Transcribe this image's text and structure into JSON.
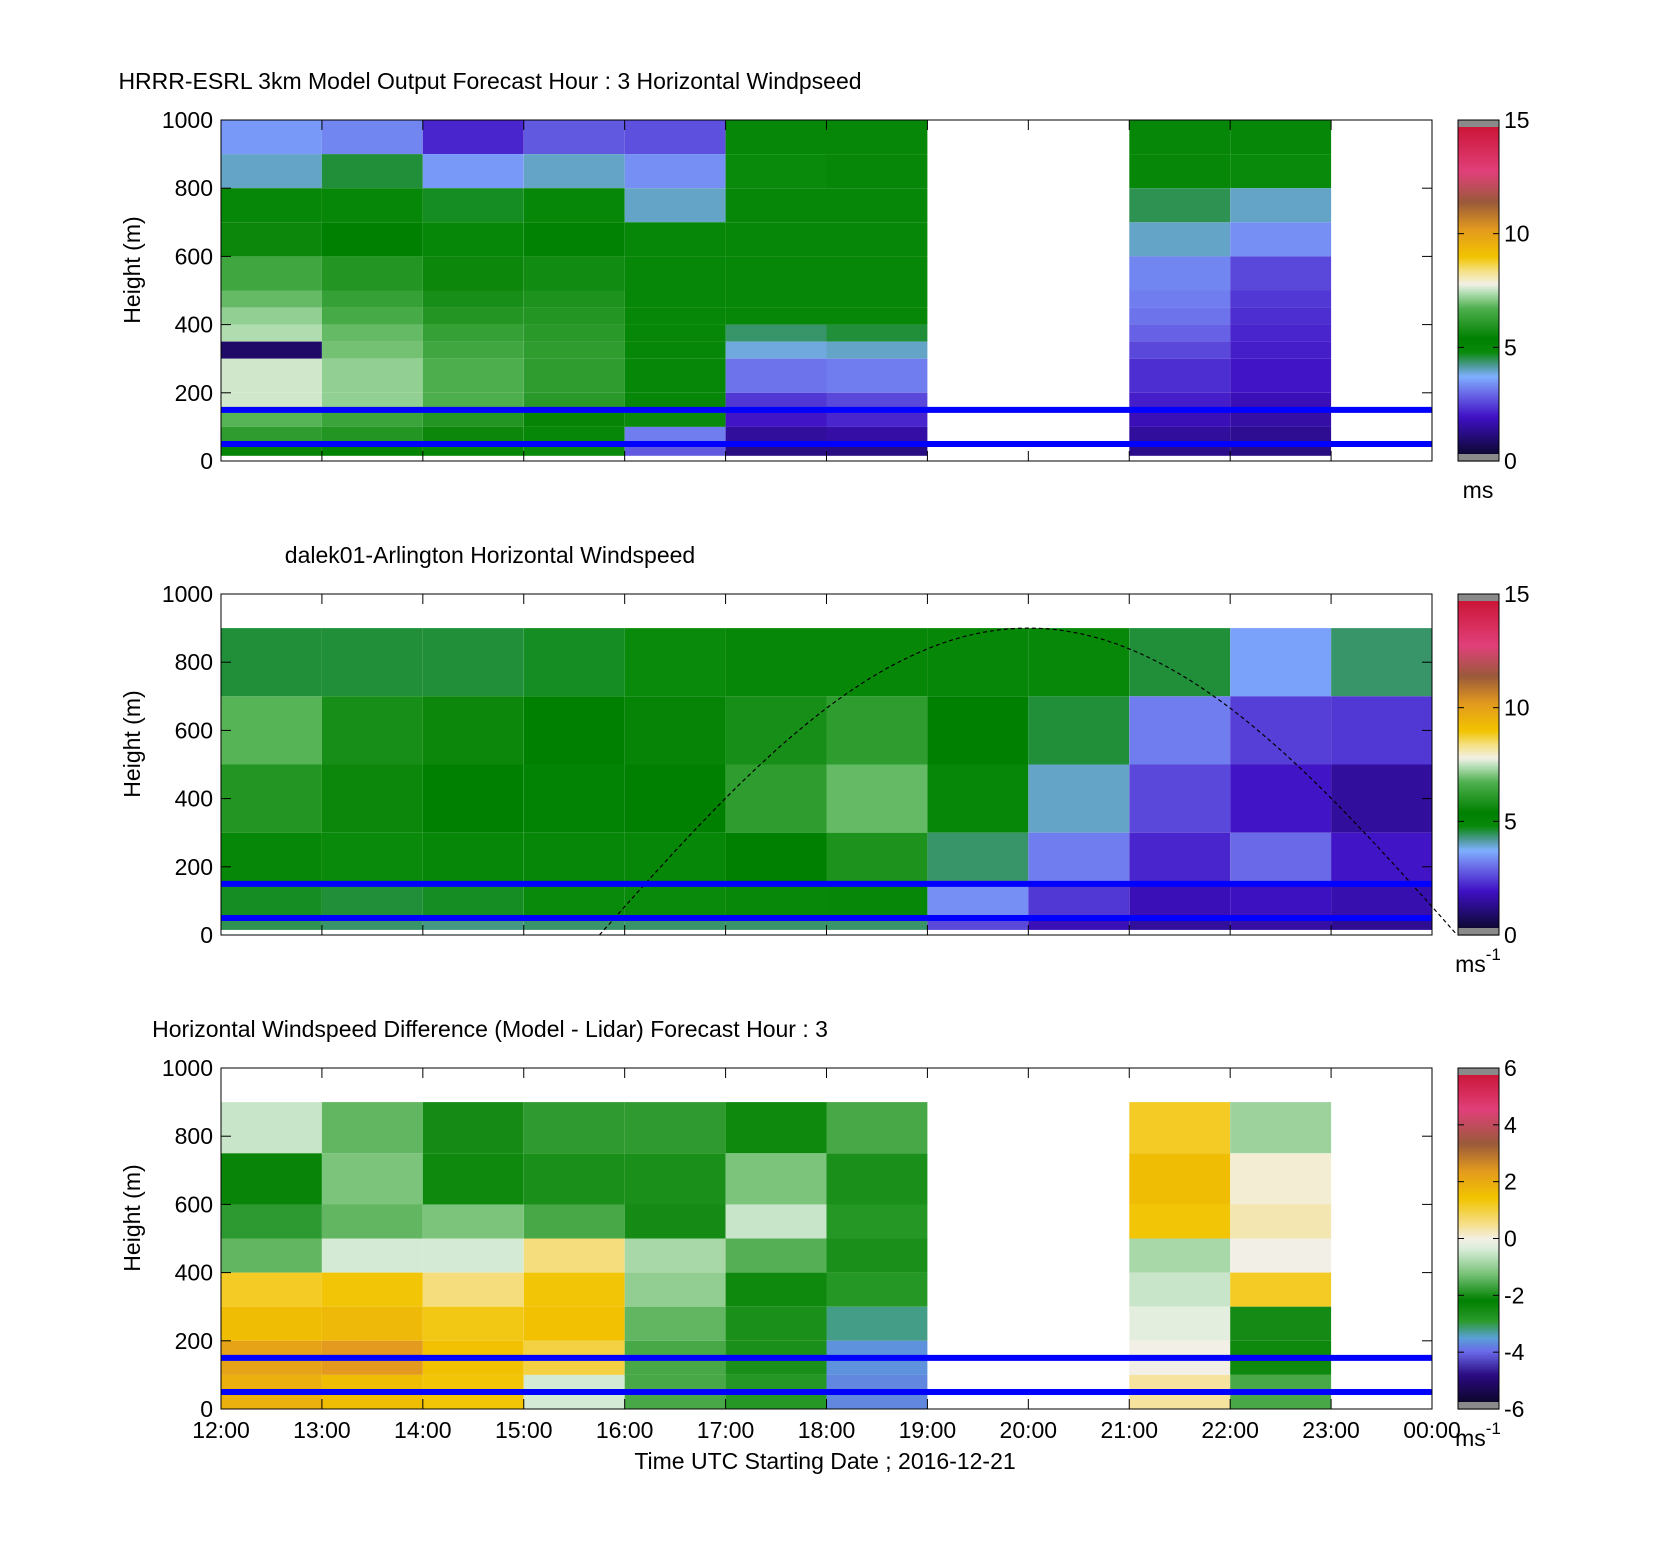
{
  "figure": {
    "xlabel": "Time UTC  Starting Date ; 2016-12-21",
    "x_ticks": [
      "12:00",
      "13:00",
      "14:00",
      "15:00",
      "16:00",
      "17:00",
      "18:00",
      "19:00",
      "20:00",
      "21:00",
      "22:00",
      "23:00",
      "00:00"
    ],
    "y_ticks": [
      "0",
      "200",
      "400",
      "600",
      "800",
      "1000"
    ],
    "reference_lines_color": "#0000ff"
  },
  "chart_data": [
    {
      "type": "heatmap",
      "title": "HRRR-ESRL 3km Model Output   Forecast Hour : 3 Horizontal Windpseed",
      "ylabel": "Height (m)",
      "xlim": [
        "12:00",
        "00:00"
      ],
      "ylim": [
        0,
        1000
      ],
      "colorbar": {
        "ticks": [
          "0",
          "5",
          "10",
          "15"
        ],
        "range": [
          0,
          15
        ],
        "unit": "ms",
        "unit_exp": ""
      },
      "reference_lines_m": [
        150,
        50
      ],
      "profiles": [
        {
          "time": "12:00",
          "bins_m": [
            1000,
            900,
            800,
            700,
            600,
            500,
            450,
            400,
            350,
            300,
            200,
            150,
            100,
            50
          ],
          "speeds": [
            3.5,
            4.0,
            5.0,
            5.6,
            6.5,
            6.9,
            7.2,
            7.4,
            0.9,
            7.6,
            7.6,
            6.8,
            6.2,
            5.5
          ]
        },
        {
          "time": "13:00",
          "bins_m": [
            1000,
            900,
            800,
            700,
            600,
            500,
            450,
            400,
            350,
            300,
            200,
            150,
            100,
            50
          ],
          "speeds": [
            3.3,
            4.6,
            5.0,
            5.4,
            6.0,
            6.3,
            6.6,
            6.9,
            7.0,
            7.2,
            7.2,
            6.4,
            6.0,
            5.2
          ]
        },
        {
          "time": "14:00",
          "bins_m": [
            1000,
            900,
            800,
            700,
            600,
            500,
            450,
            400,
            350,
            300,
            200,
            150,
            100,
            50
          ],
          "speeds": [
            2.2,
            3.5,
            4.7,
            5.0,
            5.6,
            5.8,
            6.0,
            6.3,
            6.5,
            6.7,
            6.7,
            6.0,
            5.6,
            5.0
          ]
        },
        {
          "time": "15:00",
          "bins_m": [
            1000,
            900,
            800,
            700,
            600,
            500,
            450,
            400,
            350,
            300,
            200,
            150,
            100,
            50
          ],
          "speeds": [
            2.8,
            4.0,
            5.0,
            5.3,
            5.7,
            5.9,
            6.0,
            6.1,
            6.2,
            6.2,
            6.1,
            5.5,
            5.0,
            4.8
          ]
        },
        {
          "time": "16:00",
          "bins_m": [
            1000,
            900,
            800,
            700,
            600,
            500,
            450,
            400,
            350,
            300,
            200,
            150,
            100,
            50
          ],
          "speeds": [
            2.7,
            3.4,
            4.0,
            5.0,
            5.0,
            5.0,
            5.0,
            5.0,
            5.0,
            5.0,
            5.0,
            4.8,
            3.2,
            2.8
          ]
        },
        {
          "time": "17:00",
          "bins_m": [
            1000,
            900,
            800,
            700,
            600,
            500,
            450,
            400,
            350,
            300,
            200,
            150,
            100,
            50
          ],
          "speeds": [
            5.0,
            4.8,
            5.0,
            5.0,
            5.0,
            5.0,
            5.0,
            4.4,
            3.9,
            3.1,
            2.4,
            2.0,
            1.5,
            1.2
          ]
        },
        {
          "time": "18:00",
          "bins_m": [
            1000,
            900,
            800,
            700,
            600,
            500,
            450,
            400,
            350,
            300,
            200,
            150,
            100,
            50
          ],
          "speeds": [
            5.0,
            5.0,
            5.0,
            5.0,
            5.0,
            5.0,
            5.0,
            4.6,
            4.0,
            3.2,
            2.6,
            2.2,
            1.6,
            1.2
          ]
        },
        {
          "time": "21:00",
          "bins_m": [
            1000,
            900,
            800,
            700,
            600,
            500,
            450,
            400,
            350,
            300,
            200,
            150,
            100,
            50
          ],
          "speeds": [
            5.0,
            5.0,
            4.5,
            4.0,
            3.3,
            3.2,
            3.1,
            2.9,
            2.6,
            2.3,
            2.1,
            1.8,
            1.5,
            1.3
          ]
        },
        {
          "time": "22:00",
          "bins_m": [
            1000,
            900,
            800,
            700,
            600,
            500,
            450,
            400,
            350,
            300,
            200,
            150,
            100,
            50
          ],
          "speeds": [
            5.0,
            4.8,
            4.0,
            3.4,
            2.6,
            2.4,
            2.3,
            2.2,
            2.1,
            2.0,
            1.8,
            1.6,
            1.4,
            1.2
          ]
        }
      ]
    },
    {
      "type": "heatmap",
      "title": "dalek01-Arlington  Horizontal Windspeed",
      "ylabel": "Height (m)",
      "xlim": [
        "12:00",
        "00:00"
      ],
      "ylim": [
        0,
        1000
      ],
      "colorbar": {
        "ticks": [
          "0",
          "5",
          "10",
          "15"
        ],
        "range": [
          0,
          15
        ],
        "unit": "ms",
        "unit_exp": "-1"
      },
      "reference_lines_m": [
        150,
        50
      ],
      "max_height_curve": {
        "style": "dashed",
        "peak_time": "20:00",
        "peak_height_m": 900,
        "zero_time": "15:45"
      },
      "profiles": [
        {
          "time": "12:00",
          "bins_m": [
            900,
            700,
            500,
            300,
            150,
            50
          ],
          "speeds": [
            4.6,
            6.8,
            6.0,
            5.0,
            4.7,
            4.5
          ]
        },
        {
          "time": "13:00",
          "bins_m": [
            900,
            700,
            500,
            300,
            150,
            50
          ],
          "speeds": [
            4.6,
            5.8,
            5.6,
            4.8,
            4.6,
            4.4
          ]
        },
        {
          "time": "14:00",
          "bins_m": [
            900,
            700,
            500,
            300,
            150,
            50
          ],
          "speeds": [
            4.6,
            5.6,
            5.4,
            5.0,
            4.7,
            4.3
          ]
        },
        {
          "time": "15:00",
          "bins_m": [
            900,
            700,
            500,
            300,
            150,
            50
          ],
          "speeds": [
            4.7,
            5.4,
            5.2,
            5.0,
            4.8,
            4.4
          ]
        },
        {
          "time": "16:00",
          "bins_m": [
            900,
            700,
            500,
            300,
            150,
            50
          ],
          "speeds": [
            4.8,
            5.5,
            5.4,
            5.0,
            4.8,
            4.4
          ]
        },
        {
          "time": "17:00",
          "bins_m": [
            900,
            700,
            500,
            300,
            150,
            50
          ],
          "speeds": [
            5.0,
            5.8,
            6.2,
            5.4,
            4.9,
            4.4
          ]
        },
        {
          "time": "18:00",
          "bins_m": [
            900,
            700,
            500,
            300,
            150,
            50
          ],
          "speeds": [
            5.0,
            6.2,
            6.9,
            5.9,
            5.0,
            4.4
          ]
        },
        {
          "time": "19:00",
          "bins_m": [
            900,
            700,
            500,
            300,
            150,
            50
          ],
          "speeds": [
            5.0,
            5.4,
            5.0,
            4.4,
            3.4,
            2.6
          ]
        },
        {
          "time": "20:00",
          "bins_m": [
            900,
            700,
            500,
            300,
            150,
            50
          ],
          "speeds": [
            4.9,
            4.6,
            4.0,
            3.2,
            2.4,
            1.8
          ]
        },
        {
          "time": "21:00",
          "bins_m": [
            900,
            700,
            500,
            300,
            150,
            50
          ],
          "speeds": [
            4.6,
            3.2,
            2.6,
            2.2,
            1.8,
            1.5
          ]
        },
        {
          "time": "22:00",
          "bins_m": [
            900,
            700,
            500,
            300,
            150,
            50
          ],
          "speeds": [
            3.6,
            2.5,
            2.0,
            3.0,
            1.9,
            1.6
          ]
        },
        {
          "time": "23:00",
          "bins_m": [
            900,
            700,
            500,
            300,
            150,
            50
          ],
          "speeds": [
            4.4,
            2.4,
            1.5,
            2.0,
            1.7,
            1.4
          ]
        }
      ]
    },
    {
      "type": "heatmap",
      "title": "Horizontal Windspeed Difference (Model - Lidar) Forecast Hour : 3",
      "ylabel": "Height (m)",
      "xlim": [
        "12:00",
        "00:00"
      ],
      "ylim": [
        0,
        1000
      ],
      "colorbar": {
        "ticks": [
          "-6",
          "-4",
          "-2",
          "0",
          "2",
          "4",
          "6"
        ],
        "range": [
          -6,
          6
        ],
        "unit": "ms",
        "unit_exp": "-1"
      },
      "reference_lines_m": [
        150,
        50
      ],
      "profiles": [
        {
          "time": "12:00",
          "bins_m": [
            900,
            750,
            600,
            500,
            400,
            300,
            200,
            100,
            0
          ],
          "speeds": [
            -0.5,
            -2.3,
            -2.9,
            -1.4,
            1.2,
            1.6,
            2.2,
            1.9,
            1.5
          ]
        },
        {
          "time": "13:00",
          "bins_m": [
            900,
            750,
            600,
            500,
            400,
            300,
            200,
            100,
            0
          ],
          "speeds": [
            -1.4,
            -1.2,
            -1.4,
            -0.4,
            1.4,
            1.7,
            2.4,
            1.6,
            1.3
          ]
        },
        {
          "time": "14:00",
          "bins_m": [
            900,
            750,
            600,
            500,
            400,
            300,
            200,
            100,
            0
          ],
          "speeds": [
            -2.0,
            -2.4,
            -1.2,
            -0.4,
            0.6,
            1.3,
            1.5,
            1.4,
            1.2
          ]
        },
        {
          "time": "15:00",
          "bins_m": [
            900,
            750,
            600,
            500,
            400,
            300,
            200,
            100,
            0
          ],
          "speeds": [
            -1.8,
            -2.6,
            -1.6,
            0.6,
            1.4,
            1.5,
            1.0,
            -0.4,
            -1.6
          ]
        },
        {
          "time": "16:00",
          "bins_m": [
            900,
            750,
            600,
            500,
            400,
            300,
            200,
            100,
            0
          ],
          "speeds": [
            -1.8,
            -2.6,
            -2.0,
            -0.8,
            -1.0,
            -1.4,
            -1.6,
            -1.6,
            -1.8
          ]
        },
        {
          "time": "17:00",
          "bins_m": [
            900,
            750,
            600,
            500,
            400,
            300,
            200,
            100,
            0
          ],
          "speeds": [
            -2.4,
            -1.2,
            -0.5,
            -1.5,
            -2.4,
            -2.6,
            -2.6,
            -2.8,
            -3.4
          ]
        },
        {
          "time": "18:00",
          "bins_m": [
            900,
            750,
            600,
            500,
            400,
            300,
            200,
            100,
            0
          ],
          "speeds": [
            -1.6,
            -2.6,
            -2.8,
            -2.6,
            -2.8,
            -3.2,
            -3.6,
            -3.7,
            -3.8
          ]
        },
        {
          "time": "21:00",
          "bins_m": [
            900,
            750,
            600,
            500,
            400,
            300,
            200,
            100,
            0
          ],
          "speeds": [
            1.2,
            1.6,
            1.4,
            -0.8,
            -0.5,
            -0.2,
            0.0,
            0.4,
            0.9
          ]
        },
        {
          "time": "22:00",
          "bins_m": [
            900,
            750,
            600,
            500,
            400,
            300,
            200,
            100,
            0
          ],
          "speeds": [
            -0.9,
            0.1,
            0.3,
            0.0,
            1.2,
            -2.0,
            -2.4,
            -1.6,
            -0.8
          ]
        }
      ]
    }
  ]
}
